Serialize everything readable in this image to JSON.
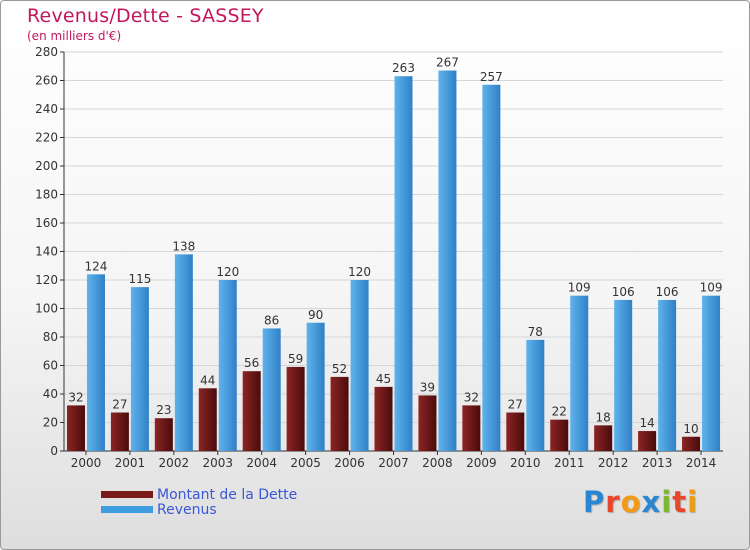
{
  "title": "Revenus/Dette - SASSEY",
  "subtitle": "(en milliers d'€)",
  "chart_data": {
    "type": "bar",
    "categories": [
      "2000",
      "2001",
      "2002",
      "2003",
      "2004",
      "2005",
      "2006",
      "2007",
      "2008",
      "2009",
      "2010",
      "2011",
      "2012",
      "2013",
      "2014"
    ],
    "series": [
      {
        "name": "Montant de la Dette",
        "color": "#7a1a1a",
        "values": [
          32,
          27,
          23,
          44,
          56,
          59,
          52,
          45,
          39,
          32,
          27,
          22,
          18,
          14,
          10
        ]
      },
      {
        "name": "Revenus",
        "color": "#3e9de0",
        "values": [
          124,
          115,
          138,
          120,
          86,
          90,
          120,
          263,
          267,
          257,
          78,
          109,
          106,
          106,
          109
        ]
      }
    ],
    "ylim": [
      0,
      280
    ],
    "yticks": [
      0,
      20,
      40,
      60,
      80,
      100,
      120,
      140,
      160,
      180,
      200,
      220,
      240,
      260,
      280
    ],
    "grid": true,
    "legend_position": "bottom-left"
  },
  "logo": {
    "text": "Proxiti",
    "letter_colors": [
      "#2a86d1",
      "#e8462c",
      "#f39a14",
      "#2a86d1",
      "#7cb82f",
      "#e8462c",
      "#f39a14"
    ]
  }
}
